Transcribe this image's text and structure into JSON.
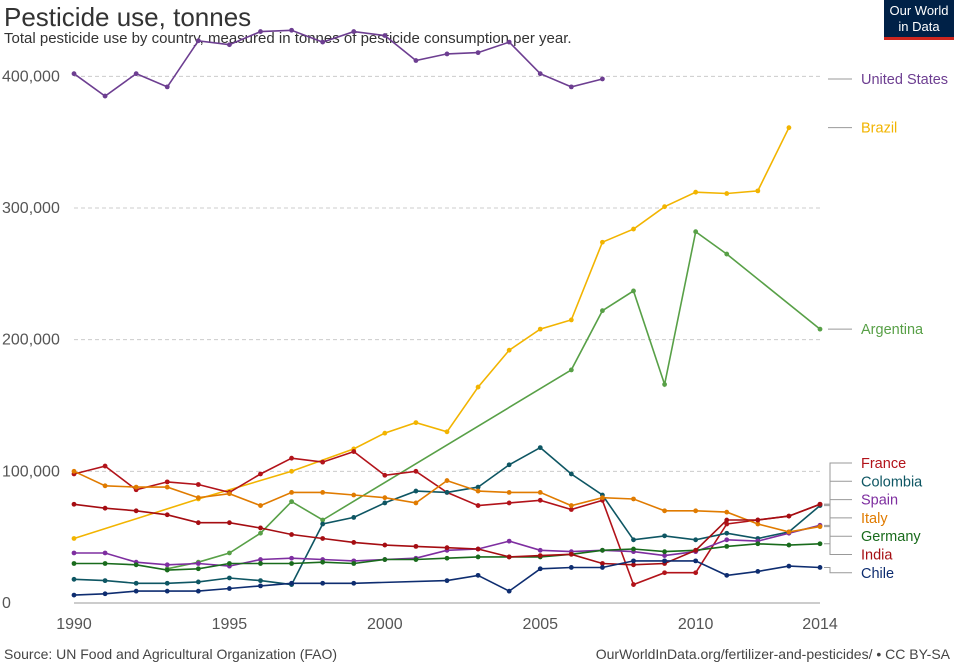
{
  "header": {
    "title": "Pesticide use, tonnes",
    "subtitle": "Total pesticide use by country, measured in tonnes of pesticide consumption per year.",
    "logo_line1": "Our World",
    "logo_line2": "in Data"
  },
  "footer": {
    "source": "Source: UN Food and Agricultural Organization (FAO)",
    "url": "OurWorldInData.org/fertilizer-and-pesticides/ • CC BY-SA"
  },
  "chart_data": {
    "type": "line",
    "title": "Pesticide use, tonnes",
    "xlim": [
      1990,
      2014
    ],
    "ylim": [
      0,
      420000
    ],
    "x_ticks": [
      1990,
      1995,
      2000,
      2005,
      2010,
      2014
    ],
    "y_ticks": [
      0,
      100000,
      200000,
      300000,
      400000
    ],
    "y_tick_labels": [
      "0",
      "100,000",
      "200,000",
      "300,000",
      "400,000"
    ],
    "grid": true,
    "legend": "right, end-of-line labels",
    "series": [
      {
        "name": "United States",
        "color": "#6d3e91",
        "points": [
          [
            1990,
            402000
          ],
          [
            1991,
            385000
          ],
          [
            1992,
            402000
          ],
          [
            1993,
            392000
          ],
          [
            1994,
            427000
          ],
          [
            1995,
            424000
          ],
          [
            1996,
            434000
          ],
          [
            1997,
            435000
          ],
          [
            1998,
            426000
          ],
          [
            1999,
            434000
          ],
          [
            2000,
            431000
          ],
          [
            2001,
            412000
          ],
          [
            2002,
            417000
          ],
          [
            2003,
            418000
          ],
          [
            2004,
            426000
          ],
          [
            2005,
            402000
          ],
          [
            2006,
            392000
          ],
          [
            2007,
            398000
          ]
        ]
      },
      {
        "name": "Brazil",
        "color": "#f2b400",
        "points": [
          [
            1990,
            49000
          ],
          [
            1994,
            79000
          ],
          [
            1997,
            100000
          ],
          [
            1999,
            117000
          ],
          [
            2000,
            129000
          ],
          [
            2001,
            137000
          ],
          [
            2002,
            130000
          ],
          [
            2003,
            164000
          ],
          [
            2004,
            192000
          ],
          [
            2005,
            208000
          ],
          [
            2006,
            215000
          ],
          [
            2007,
            274000
          ],
          [
            2008,
            284000
          ],
          [
            2009,
            301000
          ],
          [
            2010,
            312000
          ],
          [
            2011,
            311000
          ],
          [
            2012,
            313000
          ],
          [
            2013,
            361000
          ]
        ]
      },
      {
        "name": "Argentina",
        "color": "#58a047",
        "points": [
          [
            1993,
            26000
          ],
          [
            1994,
            31000
          ],
          [
            1995,
            38000
          ],
          [
            1996,
            53000
          ],
          [
            1997,
            77000
          ],
          [
            1998,
            63000
          ],
          [
            2006,
            177000
          ],
          [
            2007,
            222000
          ],
          [
            2008,
            237000
          ],
          [
            2009,
            166000
          ],
          [
            2010,
            282000
          ],
          [
            2011,
            265000
          ],
          [
            2014,
            208000
          ]
        ]
      },
      {
        "name": "France",
        "color": "#b2131a",
        "points": [
          [
            1990,
            98000
          ],
          [
            1991,
            104000
          ],
          [
            1992,
            86000
          ],
          [
            1993,
            92000
          ],
          [
            1994,
            90000
          ],
          [
            1995,
            84000
          ],
          [
            1996,
            98000
          ],
          [
            1997,
            110000
          ],
          [
            1998,
            107000
          ],
          [
            1999,
            115000
          ],
          [
            2000,
            97000
          ],
          [
            2001,
            100000
          ],
          [
            2002,
            84000
          ],
          [
            2003,
            74000
          ],
          [
            2004,
            76000
          ],
          [
            2005,
            78000
          ],
          [
            2006,
            71000
          ],
          [
            2007,
            78000
          ],
          [
            2008,
            14000
          ],
          [
            2009,
            23000
          ],
          [
            2010,
            23000
          ],
          [
            2011,
            60000
          ],
          [
            2012,
            63000
          ],
          [
            2013,
            66000
          ],
          [
            2014,
            75000
          ]
        ]
      },
      {
        "name": "Colombia",
        "color": "#0e5663",
        "points": [
          [
            1990,
            18000
          ],
          [
            1991,
            17000
          ],
          [
            1992,
            15000
          ],
          [
            1993,
            15000
          ],
          [
            1994,
            16000
          ],
          [
            1995,
            19000
          ],
          [
            1996,
            17000
          ],
          [
            1997,
            14000
          ],
          [
            1998,
            60000
          ],
          [
            1999,
            65000
          ],
          [
            2000,
            76000
          ],
          [
            2001,
            85000
          ],
          [
            2002,
            84000
          ],
          [
            2003,
            88000
          ],
          [
            2004,
            105000
          ],
          [
            2005,
            118000
          ],
          [
            2006,
            98000
          ],
          [
            2007,
            82000
          ],
          [
            2008,
            48000
          ],
          [
            2009,
            51000
          ],
          [
            2010,
            48000
          ],
          [
            2011,
            53000
          ],
          [
            2012,
            49000
          ],
          [
            2013,
            54000
          ],
          [
            2014,
            74000
          ]
        ]
      },
      {
        "name": "Spain",
        "color": "#7e2ea0",
        "points": [
          [
            1990,
            38000
          ],
          [
            1991,
            38000
          ],
          [
            1992,
            31000
          ],
          [
            1993,
            29000
          ],
          [
            1994,
            30000
          ],
          [
            1995,
            28000
          ],
          [
            1996,
            33000
          ],
          [
            1997,
            34000
          ],
          [
            1998,
            33000
          ],
          [
            1999,
            32000
          ],
          [
            2000,
            33000
          ],
          [
            2001,
            34000
          ],
          [
            2002,
            40000
          ],
          [
            2003,
            41000
          ],
          [
            2004,
            47000
          ],
          [
            2005,
            40000
          ],
          [
            2006,
            39000
          ],
          [
            2007,
            40000
          ],
          [
            2008,
            39000
          ],
          [
            2009,
            36000
          ],
          [
            2010,
            39000
          ],
          [
            2011,
            48000
          ],
          [
            2012,
            47000
          ],
          [
            2013,
            53000
          ],
          [
            2014,
            59000
          ]
        ]
      },
      {
        "name": "Italy",
        "color": "#e07b00",
        "points": [
          [
            1990,
            100000
          ],
          [
            1991,
            89000
          ],
          [
            1992,
            88000
          ],
          [
            1993,
            88000
          ],
          [
            1994,
            80000
          ],
          [
            1995,
            83000
          ],
          [
            1996,
            74000
          ],
          [
            1997,
            84000
          ],
          [
            1998,
            84000
          ],
          [
            1999,
            82000
          ],
          [
            2000,
            80000
          ],
          [
            2001,
            76000
          ],
          [
            2002,
            93000
          ],
          [
            2003,
            85000
          ],
          [
            2004,
            84000
          ],
          [
            2005,
            84000
          ],
          [
            2006,
            74000
          ],
          [
            2007,
            80000
          ],
          [
            2008,
            79000
          ],
          [
            2009,
            70000
          ],
          [
            2010,
            70000
          ],
          [
            2011,
            69000
          ],
          [
            2012,
            60000
          ],
          [
            2013,
            54000
          ],
          [
            2014,
            58000
          ]
        ]
      },
      {
        "name": "Germany",
        "color": "#196b1c",
        "points": [
          [
            1990,
            30000
          ],
          [
            1991,
            30000
          ],
          [
            1992,
            29000
          ],
          [
            1993,
            25000
          ],
          [
            1994,
            26000
          ],
          [
            1995,
            30000
          ],
          [
            1996,
            30000
          ],
          [
            1997,
            30000
          ],
          [
            1998,
            31000
          ],
          [
            1999,
            30000
          ],
          [
            2000,
            33000
          ],
          [
            2001,
            33000
          ],
          [
            2002,
            34000
          ],
          [
            2003,
            35000
          ],
          [
            2004,
            35000
          ],
          [
            2005,
            35000
          ],
          [
            2006,
            37000
          ],
          [
            2007,
            40000
          ],
          [
            2008,
            41000
          ],
          [
            2009,
            39000
          ],
          [
            2010,
            40000
          ],
          [
            2011,
            43000
          ],
          [
            2012,
            45000
          ],
          [
            2013,
            44000
          ],
          [
            2014,
            45000
          ]
        ]
      },
      {
        "name": "India",
        "color": "#a50d12",
        "points": [
          [
            1990,
            75000
          ],
          [
            1991,
            72000
          ],
          [
            1992,
            70000
          ],
          [
            1993,
            67000
          ],
          [
            1994,
            61000
          ],
          [
            1995,
            61000
          ],
          [
            1996,
            57000
          ],
          [
            1997,
            52000
          ],
          [
            1998,
            49000
          ],
          [
            1999,
            46000
          ],
          [
            2000,
            44000
          ],
          [
            2001,
            43000
          ],
          [
            2002,
            42000
          ],
          [
            2003,
            41000
          ],
          [
            2004,
            35000
          ],
          [
            2005,
            36000
          ],
          [
            2006,
            37000
          ],
          [
            2007,
            30000
          ],
          [
            2008,
            29000
          ],
          [
            2009,
            30000
          ],
          [
            2010,
            40000
          ],
          [
            2011,
            63000
          ],
          [
            2012,
            63000
          ],
          [
            2013,
            66000
          ],
          [
            2014,
            75000
          ]
        ]
      },
      {
        "name": "Chile",
        "color": "#0e2d70",
        "points": [
          [
            1990,
            6000
          ],
          [
            1991,
            7000
          ],
          [
            1992,
            9000
          ],
          [
            1993,
            9000
          ],
          [
            1994,
            9000
          ],
          [
            1995,
            11000
          ],
          [
            1996,
            13000
          ],
          [
            1997,
            15000
          ],
          [
            1998,
            15000
          ],
          [
            1999,
            15000
          ],
          [
            2002,
            17000
          ],
          [
            2003,
            21000
          ],
          [
            2004,
            9000
          ],
          [
            2005,
            26000
          ],
          [
            2006,
            27000
          ],
          [
            2007,
            27000
          ],
          [
            2008,
            32000
          ],
          [
            2009,
            32000
          ],
          [
            2010,
            32000
          ],
          [
            2011,
            21000
          ],
          [
            2012,
            24000
          ],
          [
            2013,
            28000
          ],
          [
            2014,
            27000
          ]
        ]
      }
    ]
  }
}
